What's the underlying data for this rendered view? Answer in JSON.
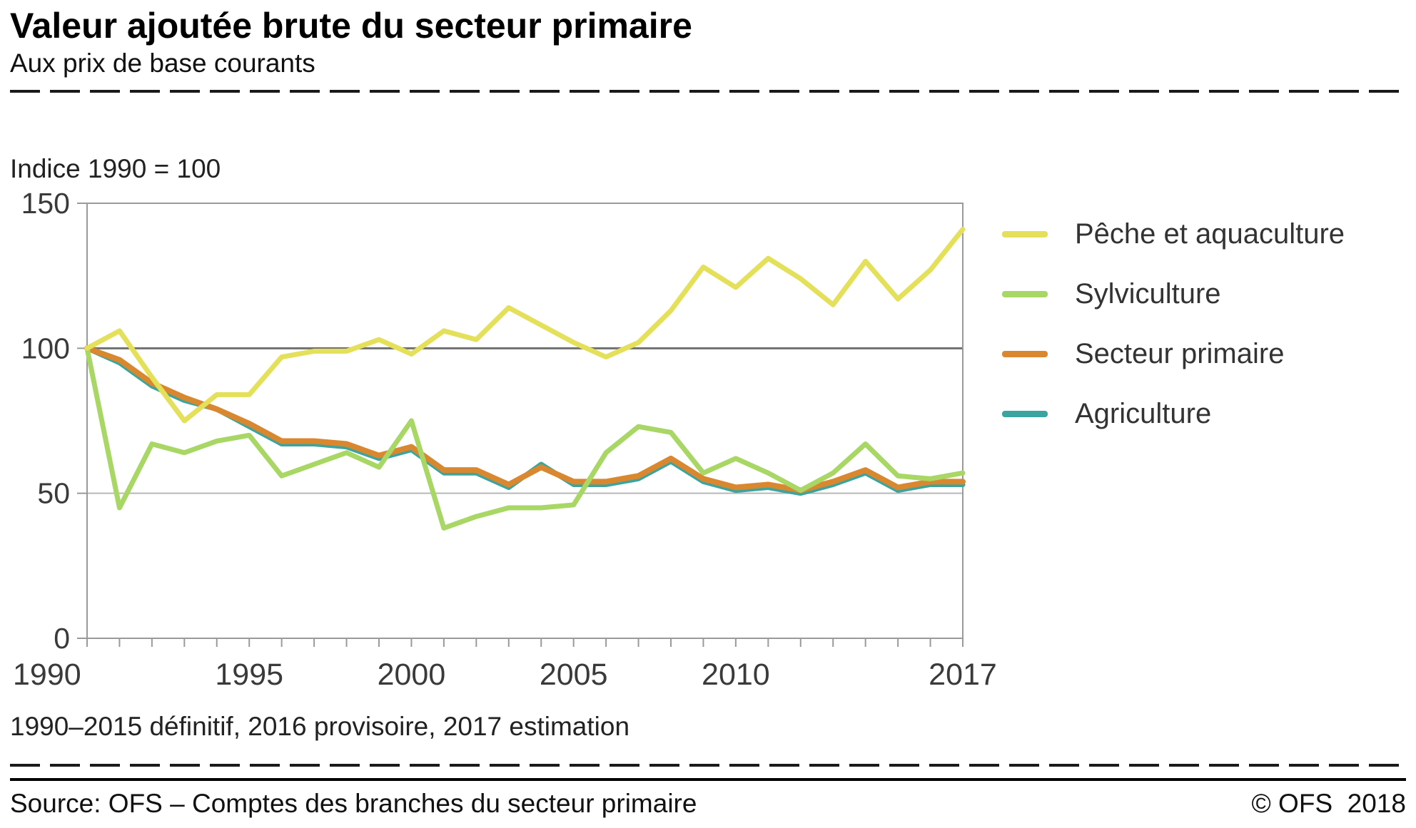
{
  "header": {
    "title": "Valeur ajoutée brute du secteur primaire",
    "subtitle": "Aux prix de base courants"
  },
  "chart": {
    "index_label": "Indice 1990 = 100",
    "note": "1990–2015 définitif, 2016 provisoire, 2017 estimation"
  },
  "footer": {
    "source": "Source: OFS – Comptes des branches du secteur primaire",
    "copyright": "© OFS  2018"
  },
  "chart_data": {
    "type": "line",
    "title": "Valeur ajoutée brute du secteur primaire",
    "subtitle": "Aux prix de base courants",
    "ylabel": "Indice 1990 = 100",
    "xlabel": "",
    "ylim": [
      0,
      150
    ],
    "yticks": [
      0,
      50,
      100,
      150
    ],
    "xticks": [
      1990,
      1995,
      2000,
      2005,
      2010,
      2017
    ],
    "grid": "horizontal (reference line at 100 darker, light line at 50)",
    "legend_position": "right",
    "x": [
      1990,
      1991,
      1992,
      1993,
      1994,
      1995,
      1996,
      1997,
      1998,
      1999,
      2000,
      2001,
      2002,
      2003,
      2004,
      2005,
      2006,
      2007,
      2008,
      2009,
      2010,
      2011,
      2012,
      2013,
      2014,
      2015,
      2016,
      2017
    ],
    "series": [
      {
        "name": "Pêche et aquaculture",
        "color": "#e4e05a",
        "values": [
          100,
          106,
          90,
          75,
          84,
          84,
          97,
          99,
          99,
          103,
          98,
          106,
          103,
          114,
          108,
          102,
          97,
          102,
          113,
          128,
          121,
          131,
          124,
          115,
          130,
          117,
          127,
          141
        ]
      },
      {
        "name": "Sylviculture",
        "color": "#a8d765",
        "values": [
          100,
          45,
          67,
          64,
          68,
          70,
          56,
          60,
          64,
          59,
          75,
          38,
          42,
          45,
          45,
          46,
          64,
          73,
          71,
          57,
          62,
          57,
          51,
          57,
          67,
          56,
          55,
          57
        ]
      },
      {
        "name": "Secteur primaire",
        "color": "#d9882f",
        "values": [
          100,
          96,
          88,
          83,
          79,
          74,
          68,
          68,
          67,
          63,
          66,
          58,
          58,
          53,
          59,
          54,
          54,
          56,
          62,
          55,
          52,
          53,
          51,
          54,
          58,
          52,
          54,
          54
        ]
      },
      {
        "name": "Agriculture",
        "color": "#3aa5a0",
        "values": [
          100,
          95,
          87,
          82,
          79,
          73,
          67,
          67,
          66,
          62,
          65,
          57,
          57,
          52,
          60,
          53,
          53,
          55,
          61,
          54,
          51,
          52,
          50,
          53,
          57,
          51,
          53,
          53
        ]
      }
    ]
  }
}
